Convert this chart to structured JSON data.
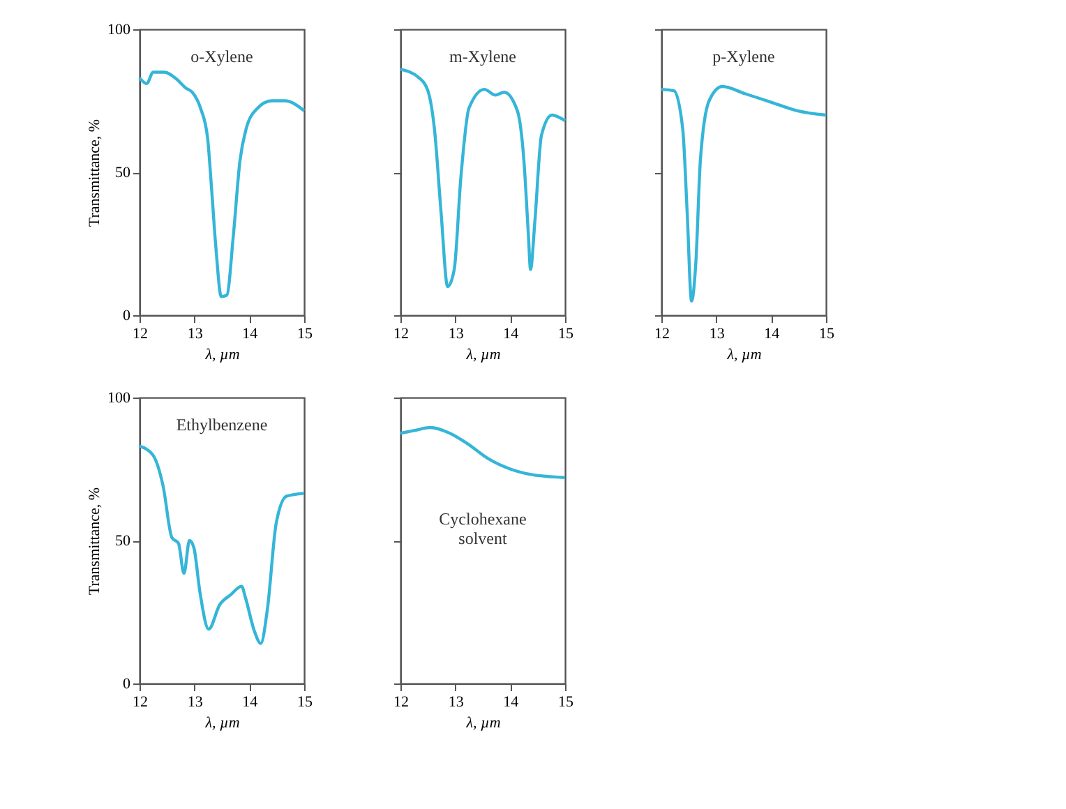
{
  "chart_data": [
    {
      "type": "line",
      "title": "o-Xylene",
      "xlabel": "λ, µm",
      "ylabel": "Transmittance, %",
      "xlim": [
        12,
        15
      ],
      "xticks": [
        12,
        13,
        14,
        15
      ],
      "ylim": [
        0,
        100
      ],
      "yticks": [
        0,
        50,
        100
      ],
      "grid": false,
      "series": [
        {
          "color": "#35b5d8",
          "x": [
            12.0,
            12.13,
            12.25,
            12.45,
            12.68,
            12.84,
            12.96,
            13.11,
            13.24,
            13.31,
            13.39,
            13.49,
            13.59,
            13.71,
            13.83,
            13.94,
            14.13,
            14.41,
            14.65,
            15.0
          ],
          "values": [
            83,
            81,
            85,
            85,
            82.5,
            79.5,
            78,
            72.5,
            62,
            45,
            24,
            6.5,
            7,
            28,
            54,
            65,
            72,
            75,
            75,
            71.5
          ]
        }
      ]
    },
    {
      "type": "line",
      "title": "m-Xylene",
      "xlabel": "λ, µm",
      "xlim": [
        12,
        15
      ],
      "xticks": [
        12,
        13,
        14,
        15
      ],
      "ylim": [
        0,
        100
      ],
      "yticks": [
        0,
        50,
        100
      ],
      "tick_labels": "x",
      "grid": false,
      "series": [
        {
          "color": "#35b5d8",
          "x": [
            12.0,
            12.34,
            12.5,
            12.62,
            12.74,
            12.86,
            12.98,
            13.1,
            13.25,
            13.53,
            13.73,
            13.89,
            14.13,
            14.25,
            14.33,
            14.37,
            14.45,
            14.57,
            14.76,
            15.0
          ],
          "values": [
            86,
            83,
            78.5,
            65,
            36,
            10,
            16,
            48,
            72.5,
            79,
            77,
            78,
            71.5,
            54,
            28.5,
            16,
            33,
            63,
            70,
            68
          ]
        }
      ]
    },
    {
      "type": "line",
      "title": "p-Xylene",
      "xlabel": "λ, µm",
      "xlim": [
        12,
        15
      ],
      "xticks": [
        12,
        13,
        14,
        15
      ],
      "ylim": [
        0,
        100
      ],
      "yticks": [
        0,
        50,
        100
      ],
      "tick_labels": "x",
      "grid": false,
      "series": [
        {
          "color": "#35b5d8",
          "x": [
            12.0,
            12.23,
            12.39,
            12.47,
            12.55,
            12.63,
            12.71,
            12.87,
            13.11,
            13.52,
            14.0,
            14.48,
            15.0
          ],
          "values": [
            79,
            78.5,
            65,
            36,
            5,
            19,
            54,
            75,
            80,
            77.5,
            74.5,
            71.5,
            70
          ]
        }
      ]
    },
    {
      "type": "line",
      "title": "Ethylbenzene",
      "xlabel": "λ, µm",
      "ylabel": "Transmittance, %",
      "xlim": [
        12,
        15
      ],
      "xticks": [
        12,
        13,
        14,
        15
      ],
      "ylim": [
        0,
        100
      ],
      "yticks": [
        0,
        50,
        100
      ],
      "grid": false,
      "series": [
        {
          "color": "#35b5d8",
          "x": [
            12.0,
            12.24,
            12.43,
            12.59,
            12.71,
            12.81,
            12.91,
            12.99,
            13.1,
            13.26,
            13.46,
            13.66,
            13.86,
            13.93,
            14.09,
            14.21,
            14.33,
            14.49,
            14.68,
            15.0
          ],
          "values": [
            83,
            80,
            69,
            51,
            49,
            38.5,
            50,
            47.5,
            32,
            19,
            27.5,
            31,
            34,
            30,
            18.5,
            14,
            26,
            56,
            65.5,
            66.5
          ]
        }
      ]
    },
    {
      "type": "line",
      "title": "Cyclohexane\nsolvent",
      "xlabel": "λ, µm",
      "xlim": [
        12,
        15
      ],
      "xticks": [
        12,
        13,
        14,
        15
      ],
      "ylim": [
        0,
        100
      ],
      "yticks": [
        0,
        50,
        100
      ],
      "tick_labels": "x",
      "grid": false,
      "series": [
        {
          "color": "#35b5d8",
          "x": [
            12.0,
            12.26,
            12.54,
            12.9,
            13.21,
            13.61,
            14.0,
            14.4,
            15.0
          ],
          "values": [
            87.5,
            88.5,
            89.5,
            87.5,
            84,
            78.5,
            75,
            73,
            72
          ]
        }
      ]
    }
  ]
}
